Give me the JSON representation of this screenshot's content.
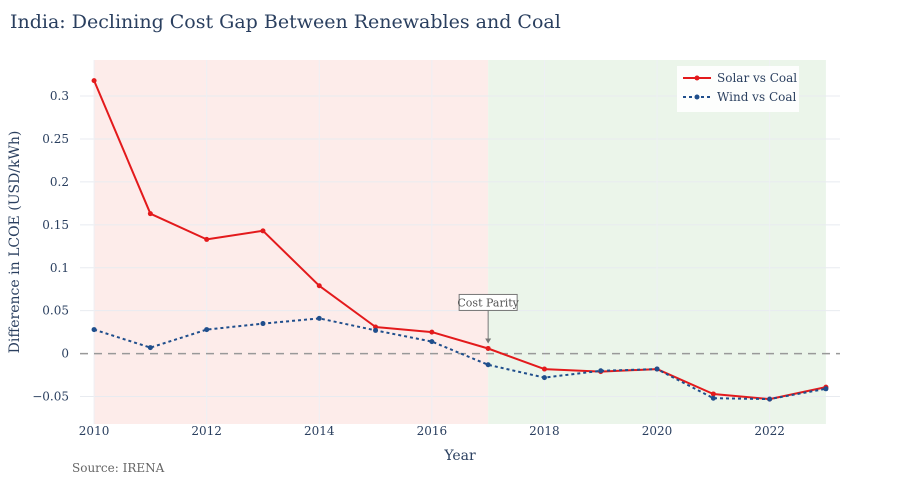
{
  "chart_data": {
    "type": "line",
    "title": "India: Declining Cost Gap Between Renewables and Coal",
    "xlabel": "Year",
    "ylabel": "Difference in LCOE (USD/kWh)",
    "xlim": [
      2009.75,
      2023.25
    ],
    "ylim": [
      -0.082,
      0.342
    ],
    "x_ticks": [
      2010,
      2012,
      2014,
      2016,
      2018,
      2020,
      2022
    ],
    "y_ticks": [
      -0.05,
      0,
      0.05,
      0.1,
      0.15,
      0.2,
      0.25,
      0.3
    ],
    "y_tick_labels": [
      "−0.05",
      "0",
      "0.05",
      "0.1",
      "0.15",
      "0.2",
      "0.25",
      "0.3"
    ],
    "x": [
      2010,
      2011,
      2012,
      2013,
      2014,
      2015,
      2016,
      2017,
      2018,
      2019,
      2020,
      2021,
      2022,
      2023
    ],
    "series": [
      {
        "name": "Solar vs Coal",
        "color": "#e31a1c",
        "dash": "solid",
        "values": [
          0.318,
          0.163,
          0.133,
          0.143,
          0.079,
          0.031,
          0.025,
          0.006,
          -0.018,
          -0.021,
          -0.018,
          -0.047,
          -0.053,
          -0.039
        ]
      },
      {
        "name": "Wind vs Coal",
        "color": "#1f4e8c",
        "dash": "dot",
        "values": [
          0.028,
          0.007,
          0.028,
          0.035,
          0.041,
          0.027,
          0.014,
          -0.013,
          -0.028,
          -0.02,
          -0.018,
          -0.052,
          -0.053,
          -0.041
        ]
      }
    ],
    "regions": [
      {
        "x0": 2010,
        "x1": 2017,
        "color": "#fdecea"
      },
      {
        "x0": 2017,
        "x1": 2023,
        "color": "#ebf5ea"
      }
    ],
    "reference_line": {
      "y": 0,
      "style": "dashed",
      "color": "#999999"
    },
    "annotation": {
      "text": "Cost Parity",
      "x": 2017,
      "y": 0.006
    },
    "legend_position": "top-right"
  },
  "footer": {
    "source": "Source: IRENA"
  }
}
